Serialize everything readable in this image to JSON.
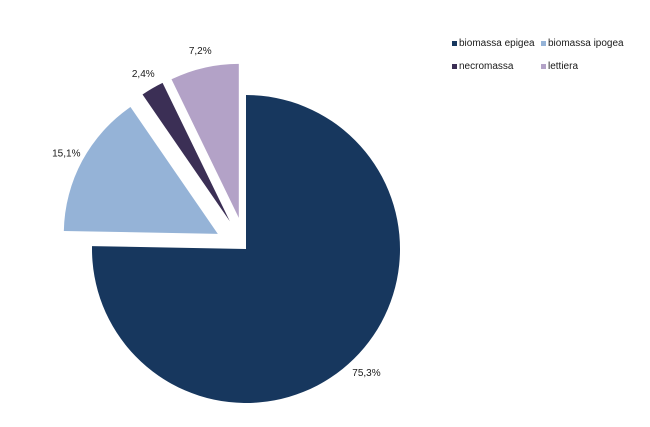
{
  "chart_data": {
    "type": "pie",
    "title": "",
    "slices": [
      {
        "name": "biomassa epigea",
        "value": 75.3,
        "label": "75,3%",
        "color": "#17375e"
      },
      {
        "name": "biomassa ipogea",
        "value": 15.1,
        "label": "15,1%",
        "color": "#95b3d7"
      },
      {
        "name": "necromassa",
        "value": 2.4,
        "label": "2,4%",
        "color": "#3b2f55"
      },
      {
        "name": "lettiera",
        "value": 7.2,
        "label": "7,2%",
        "color": "#b3a2c7"
      }
    ],
    "exploded": [
      "biomassa ipogea",
      "necromassa",
      "lettiera"
    ],
    "start_angle_deg": 0,
    "direction": "clockwise",
    "legend": {
      "placement": "top-right",
      "columns": 2
    }
  }
}
